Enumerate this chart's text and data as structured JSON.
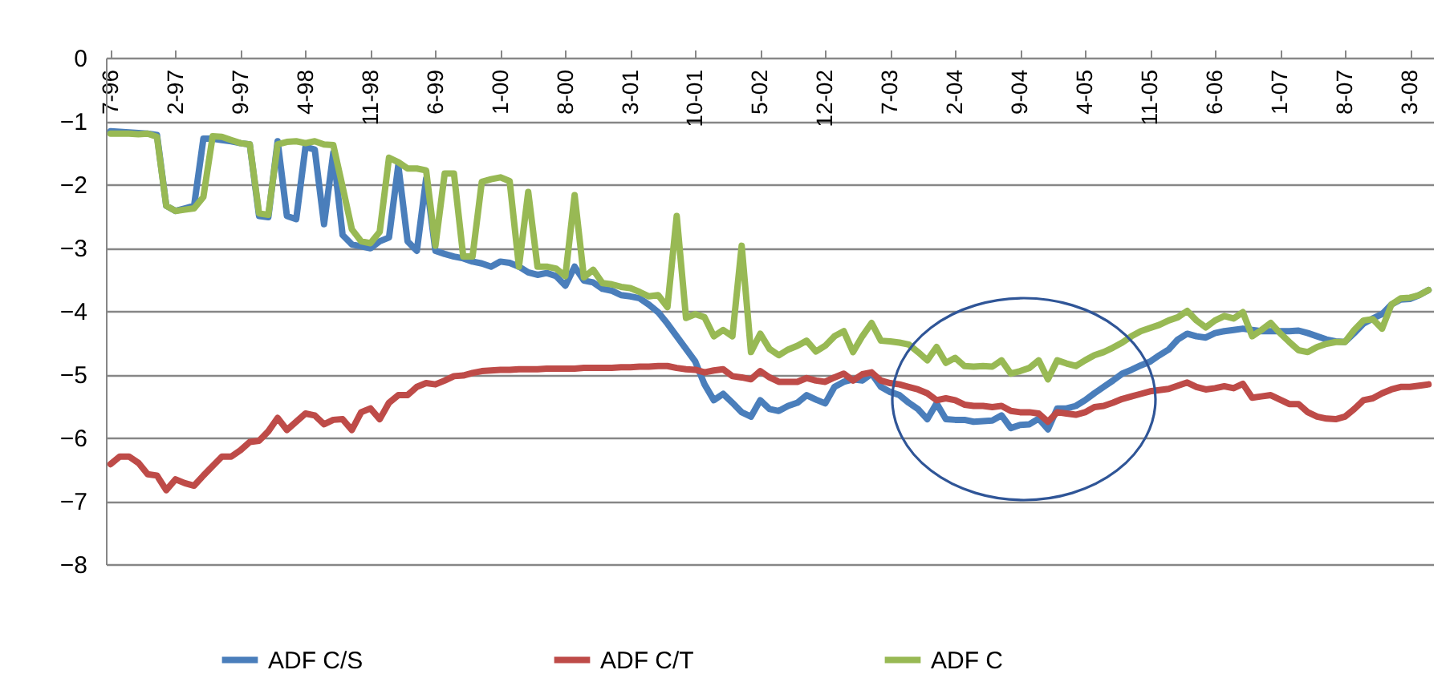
{
  "chart_data": {
    "type": "line",
    "categories": [
      "7-96",
      null,
      null,
      null,
      null,
      null,
      null,
      "2-97",
      null,
      null,
      null,
      null,
      null,
      null,
      "9-97",
      null,
      null,
      null,
      null,
      null,
      null,
      "4-98",
      null,
      null,
      null,
      null,
      null,
      null,
      "11-98",
      null,
      null,
      null,
      null,
      null,
      null,
      "6-99",
      null,
      null,
      null,
      null,
      null,
      null,
      "1-00",
      null,
      null,
      null,
      null,
      null,
      null,
      "8-00",
      null,
      null,
      null,
      null,
      null,
      null,
      "3-01",
      null,
      null,
      null,
      null,
      null,
      null,
      "10-01",
      null,
      null,
      null,
      null,
      null,
      null,
      "5-02",
      null,
      null,
      null,
      null,
      null,
      null,
      "12-02",
      null,
      null,
      null,
      null,
      null,
      null,
      "7-03",
      null,
      null,
      null,
      null,
      null,
      null,
      "2-04",
      null,
      null,
      null,
      null,
      null,
      null,
      "9-04",
      null,
      null,
      null,
      null,
      null,
      null,
      "4-05",
      null,
      null,
      null,
      null,
      null,
      null,
      "11-05",
      null,
      null,
      null,
      null,
      null,
      null,
      "6-06",
      null,
      null,
      null,
      null,
      null,
      null,
      "1-07",
      null,
      null,
      null,
      null,
      null,
      null,
      "8-07",
      null,
      null,
      null,
      null,
      null,
      null,
      "3-08",
      null,
      null
    ],
    "series": [
      {
        "name": "ADF C/S",
        "color": "#4a7ebb",
        "values": [
          -1.16,
          -1.17,
          -1.18,
          -1.19,
          -1.2,
          -1.22,
          -2.34,
          -2.42,
          -2.38,
          -2.34,
          -1.28,
          -1.28,
          -1.3,
          -1.32,
          -1.35,
          -1.37,
          -2.5,
          -2.52,
          -1.32,
          -2.5,
          -2.55,
          -1.41,
          -1.45,
          -2.63,
          -1.5,
          -2.8,
          -2.95,
          -2.98,
          -3.01,
          -2.9,
          -2.84,
          -1.7,
          -2.9,
          -3.05,
          -1.91,
          -3.05,
          -3.1,
          -3.14,
          -3.17,
          -3.22,
          -3.25,
          -3.3,
          -3.22,
          -3.24,
          -3.3,
          -3.39,
          -3.43,
          -3.4,
          -3.45,
          -3.6,
          -3.3,
          -3.52,
          -3.55,
          -3.65,
          -3.68,
          -3.75,
          -3.77,
          -3.8,
          -3.9,
          -4.02,
          -4.2,
          -4.4,
          -4.6,
          -4.8,
          -5.16,
          -5.41,
          -5.31,
          -5.45,
          -5.6,
          -5.67,
          -5.41,
          -5.55,
          -5.58,
          -5.5,
          -5.45,
          -5.33,
          -5.4,
          -5.46,
          -5.2,
          -5.12,
          -5.08,
          -5.1,
          -4.99,
          -5.2,
          -5.28,
          -5.33,
          -5.45,
          -5.55,
          -5.71,
          -5.46,
          -5.71,
          -5.72,
          -5.72,
          -5.75,
          -5.74,
          -5.73,
          -5.65,
          -5.85,
          -5.8,
          -5.79,
          -5.7,
          -5.87,
          -5.54,
          -5.54,
          -5.5,
          -5.41,
          -5.3,
          -5.2,
          -5.1,
          -4.99,
          -4.93,
          -4.86,
          -4.8,
          -4.7,
          -4.61,
          -4.45,
          -4.36,
          -4.4,
          -4.42,
          -4.35,
          -4.32,
          -4.3,
          -4.28,
          -4.3,
          -4.32,
          -4.32,
          -4.32,
          -4.32,
          -4.31,
          -4.35,
          -4.4,
          -4.45,
          -4.48,
          -4.49,
          -4.35,
          -4.2,
          -4.12,
          -4.05,
          -3.9,
          -3.82,
          -3.81,
          -3.75,
          -3.67
        ]
      },
      {
        "name": "ADF C/T",
        "color": "#be4b48",
        "values": [
          -6.42,
          -6.3,
          -6.3,
          -6.4,
          -6.58,
          -6.6,
          -6.83,
          -6.66,
          -6.72,
          -6.76,
          -6.6,
          -6.45,
          -6.3,
          -6.3,
          -6.2,
          -6.07,
          -6.05,
          -5.9,
          -5.69,
          -5.88,
          -5.75,
          -5.62,
          -5.65,
          -5.79,
          -5.72,
          -5.71,
          -5.88,
          -5.6,
          -5.54,
          -5.71,
          -5.45,
          -5.33,
          -5.33,
          -5.2,
          -5.14,
          -5.16,
          -5.1,
          -5.03,
          -5.02,
          -4.98,
          -4.95,
          -4.94,
          -4.93,
          -4.93,
          -4.92,
          -4.92,
          -4.92,
          -4.91,
          -4.91,
          -4.91,
          -4.91,
          -4.9,
          -4.9,
          -4.9,
          -4.9,
          -4.89,
          -4.89,
          -4.88,
          -4.88,
          -4.87,
          -4.87,
          -4.9,
          -4.92,
          -4.93,
          -4.97,
          -4.94,
          -4.92,
          -5.03,
          -5.05,
          -5.08,
          -4.95,
          -5.05,
          -5.12,
          -5.12,
          -5.12,
          -5.06,
          -5.1,
          -5.12,
          -5.05,
          -4.99,
          -5.1,
          -5.0,
          -4.97,
          -5.1,
          -5.14,
          -5.16,
          -5.2,
          -5.24,
          -5.3,
          -5.41,
          -5.38,
          -5.41,
          -5.48,
          -5.5,
          -5.5,
          -5.52,
          -5.5,
          -5.58,
          -5.6,
          -5.6,
          -5.62,
          -5.75,
          -5.6,
          -5.62,
          -5.64,
          -5.6,
          -5.52,
          -5.5,
          -5.45,
          -5.39,
          -5.35,
          -5.31,
          -5.27,
          -5.25,
          -5.23,
          -5.18,
          -5.13,
          -5.2,
          -5.24,
          -5.22,
          -5.19,
          -5.22,
          -5.15,
          -5.37,
          -5.35,
          -5.33,
          -5.4,
          -5.47,
          -5.47,
          -5.6,
          -5.67,
          -5.7,
          -5.71,
          -5.67,
          -5.55,
          -5.41,
          -5.38,
          -5.3,
          -5.24,
          -5.2,
          -5.2,
          -5.18,
          -5.16
        ]
      },
      {
        "name": "ADF C",
        "color": "#98b954",
        "values": [
          -1.2,
          -1.2,
          -1.2,
          -1.21,
          -1.2,
          -1.25,
          -2.34,
          -2.42,
          -2.4,
          -2.38,
          -2.2,
          -1.24,
          -1.25,
          -1.3,
          -1.35,
          -1.37,
          -2.46,
          -2.48,
          -1.37,
          -1.33,
          -1.32,
          -1.35,
          -1.32,
          -1.37,
          -1.38,
          -2.04,
          -2.71,
          -2.9,
          -2.93,
          -2.75,
          -1.58,
          -1.65,
          -1.75,
          -1.75,
          -1.78,
          -2.97,
          -1.83,
          -1.83,
          -3.14,
          -3.14,
          -1.96,
          -1.92,
          -1.89,
          -1.95,
          -3.3,
          -2.12,
          -3.3,
          -3.3,
          -3.33,
          -3.45,
          -2.17,
          -3.47,
          -3.35,
          -3.56,
          -3.58,
          -3.62,
          -3.64,
          -3.7,
          -3.77,
          -3.75,
          -3.94,
          -2.5,
          -4.11,
          -4.05,
          -4.1,
          -4.4,
          -4.3,
          -4.4,
          -2.97,
          -4.65,
          -4.36,
          -4.6,
          -4.7,
          -4.61,
          -4.55,
          -4.47,
          -4.64,
          -4.55,
          -4.4,
          -4.32,
          -4.65,
          -4.4,
          -4.19,
          -4.47,
          -4.48,
          -4.5,
          -4.53,
          -4.65,
          -4.78,
          -4.57,
          -4.82,
          -4.74,
          -4.87,
          -4.88,
          -4.87,
          -4.88,
          -4.78,
          -4.99,
          -4.95,
          -4.9,
          -4.78,
          -5.08,
          -4.78,
          -4.83,
          -4.87,
          -4.78,
          -4.7,
          -4.65,
          -4.58,
          -4.5,
          -4.4,
          -4.32,
          -4.27,
          -4.22,
          -4.15,
          -4.1,
          -4.0,
          -4.15,
          -4.26,
          -4.15,
          -4.08,
          -4.12,
          -4.02,
          -4.4,
          -4.3,
          -4.19,
          -4.35,
          -4.49,
          -4.62,
          -4.65,
          -4.57,
          -4.52,
          -4.49,
          -4.49,
          -4.3,
          -4.15,
          -4.13,
          -4.28,
          -3.9,
          -3.8,
          -3.79,
          -3.75,
          -3.67
        ]
      }
    ],
    "ylim": [
      -8,
      0
    ],
    "yticks": [
      0,
      -1,
      -2,
      -3,
      -4,
      -5,
      -6,
      -7,
      -8
    ],
    "grid": "y",
    "legend": "bottom"
  }
}
